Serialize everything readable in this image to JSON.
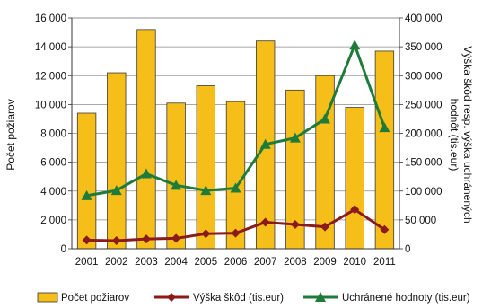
{
  "chart_data": {
    "type": "bar",
    "categories": [
      "2001",
      "2002",
      "2003",
      "2004",
      "2005",
      "2006",
      "2007",
      "2008",
      "2009",
      "2010",
      "2011"
    ],
    "bar_series": {
      "name": "Počet požiarov",
      "axis": "left",
      "color": "#F5BE18",
      "values": [
        9400,
        12200,
        15200,
        10100,
        11300,
        10200,
        14400,
        11000,
        12000,
        9800,
        13700
      ]
    },
    "line_series": [
      {
        "name": "Výška škôd (tis.eur)",
        "axis": "right",
        "color": "#8B1A1A",
        "marker": "diamond",
        "values": [
          15000,
          14000,
          17000,
          18000,
          26000,
          27000,
          46000,
          42000,
          38000,
          68000,
          33000
        ]
      },
      {
        "name": "Uchránené hodnoty (tis.eur)",
        "axis": "right",
        "color": "#1E7B3A",
        "marker": "triangle",
        "values": [
          92000,
          101000,
          130000,
          110000,
          101000,
          105000,
          181000,
          192000,
          225000,
          353000,
          210000
        ]
      }
    ],
    "y_left": {
      "label": "Počet požiarov",
      "ylim": [
        0,
        16000
      ],
      "ticks": [
        "0",
        "2 000",
        "4 000",
        "6 000",
        "8 000",
        "10 000",
        "12 000",
        "14 000",
        "16 000"
      ]
    },
    "y_right": {
      "label": "Výška škôd resp. výška uchránených hodnôt (tis.eur)",
      "ylim": [
        0,
        400000
      ],
      "ticks": [
        "0",
        "50 000",
        "100 000",
        "150 000",
        "200 000",
        "250 000",
        "300 000",
        "350 000",
        "400 000"
      ]
    },
    "grid": true,
    "legend_position": "bottom"
  }
}
